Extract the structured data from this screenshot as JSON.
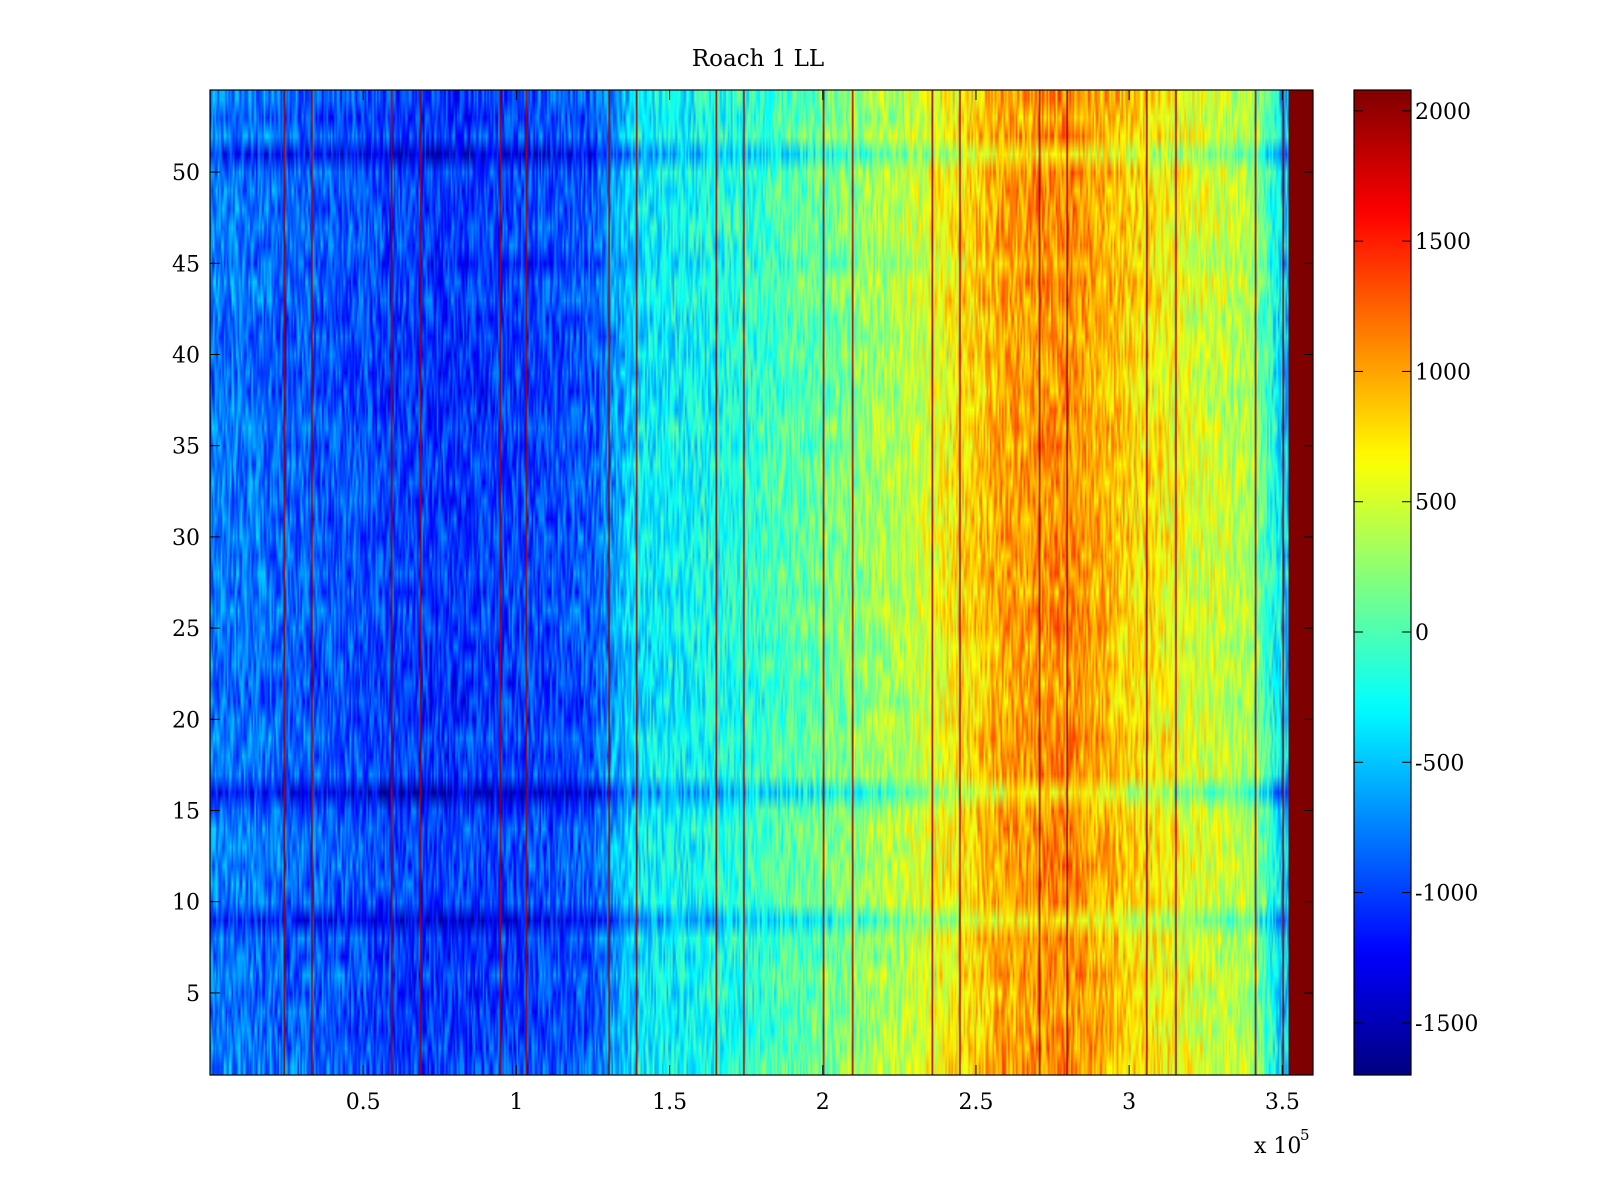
{
  "chart_data": {
    "type": "heatmap",
    "title": "Roach 1 LL",
    "xlabel": "",
    "ylabel": "",
    "x_multiplier": "x 10",
    "x_multiplier_exponent": "5",
    "xlim": [
      0,
      360000
    ],
    "ylim": [
      0.5,
      54.5
    ],
    "x_ticks": [
      {
        "value": 50000,
        "label": "0.5"
      },
      {
        "value": 100000,
        "label": "1"
      },
      {
        "value": 150000,
        "label": "1.5"
      },
      {
        "value": 200000,
        "label": "2"
      },
      {
        "value": 250000,
        "label": "2.5"
      },
      {
        "value": 300000,
        "label": "3"
      },
      {
        "value": 350000,
        "label": "3.5"
      }
    ],
    "y_ticks": [
      {
        "value": 5,
        "label": "5"
      },
      {
        "value": 10,
        "label": "10"
      },
      {
        "value": 15,
        "label": "15"
      },
      {
        "value": 20,
        "label": "20"
      },
      {
        "value": 25,
        "label": "25"
      },
      {
        "value": 30,
        "label": "30"
      },
      {
        "value": 35,
        "label": "35"
      },
      {
        "value": 40,
        "label": "40"
      },
      {
        "value": 45,
        "label": "45"
      },
      {
        "value": 50,
        "label": "50"
      }
    ],
    "colorbar": {
      "colormap": "jet",
      "clim": [
        -1700,
        2080
      ],
      "ticks": [
        {
          "value": -1500,
          "label": "-1500"
        },
        {
          "value": -1000,
          "label": "-1000"
        },
        {
          "value": -500,
          "label": "-500"
        },
        {
          "value": 0,
          "label": "0"
        },
        {
          "value": 500,
          "label": "500"
        },
        {
          "value": 1000,
          "label": "1000"
        },
        {
          "value": 1500,
          "label": "1500"
        },
        {
          "value": 2000,
          "label": "2000"
        }
      ]
    },
    "rows": 54,
    "trend_x": [
      0,
      25000,
      50000,
      75000,
      100000,
      125000,
      140000,
      160000,
      200000,
      230000,
      260000,
      280000,
      300000,
      320000,
      340000,
      350000
    ],
    "trend_values": [
      -750,
      -850,
      -950,
      -1050,
      -1000,
      -900,
      -350,
      -250,
      100,
      450,
      1000,
      1100,
      800,
      550,
      350,
      -450
    ],
    "vertical_lines_x": [
      24000,
      33000,
      59000,
      68500,
      94500,
      103500,
      130000,
      139000,
      165000,
      174000,
      200000,
      209500,
      235500,
      244500,
      270500,
      279500,
      305500,
      315000,
      341000,
      350000
    ],
    "vertical_line_value": 2080,
    "right_edge_band": {
      "x_start": 352000,
      "x_end": 360000,
      "value": 2080
    },
    "dark_rows": [
      {
        "row": 9,
        "offset": -280
      },
      {
        "row": 16,
        "offset": -420
      },
      {
        "row": 51,
        "offset": -300
      }
    ]
  }
}
